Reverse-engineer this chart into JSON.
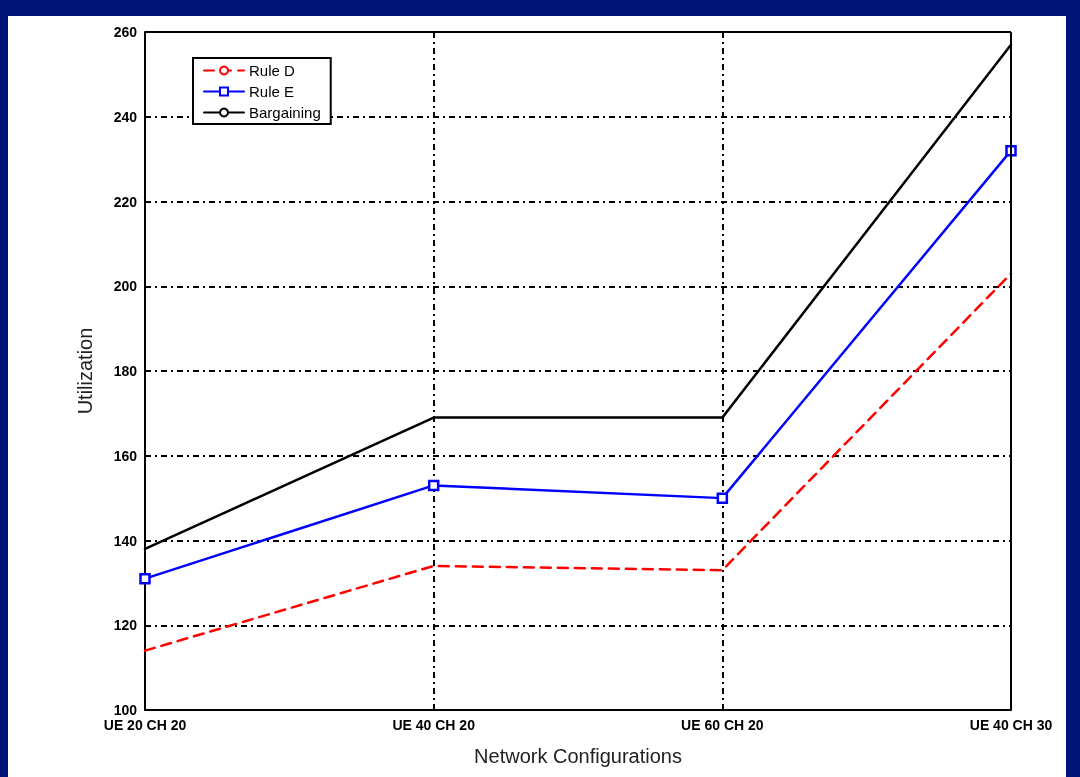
{
  "chart_data": {
    "type": "line",
    "xlabel": "Network Configurations",
    "ylabel": "Utilization",
    "categories": [
      "UE 20 CH 20",
      "UE 40 CH 20",
      "UE 60 CH 20",
      "UE 40 CH 30"
    ],
    "series": [
      {
        "name": "Rule D",
        "color": "#ff0000",
        "line_style": "dashed",
        "marker": "none",
        "values": [
          114,
          134,
          133,
          203
        ]
      },
      {
        "name": "Rule E",
        "color": "#0000ff",
        "line_style": "solid",
        "marker": "square",
        "values": [
          131,
          153,
          150,
          232
        ]
      },
      {
        "name": "Bargaining",
        "color": "#000000",
        "line_style": "solid",
        "marker": "none",
        "values": [
          138,
          169,
          169,
          257
        ]
      }
    ],
    "ylim": [
      100,
      260
    ],
    "yticks": [
      100,
      120,
      140,
      160,
      180,
      200,
      220,
      240,
      260
    ],
    "grid": true,
    "legend": "top left"
  }
}
